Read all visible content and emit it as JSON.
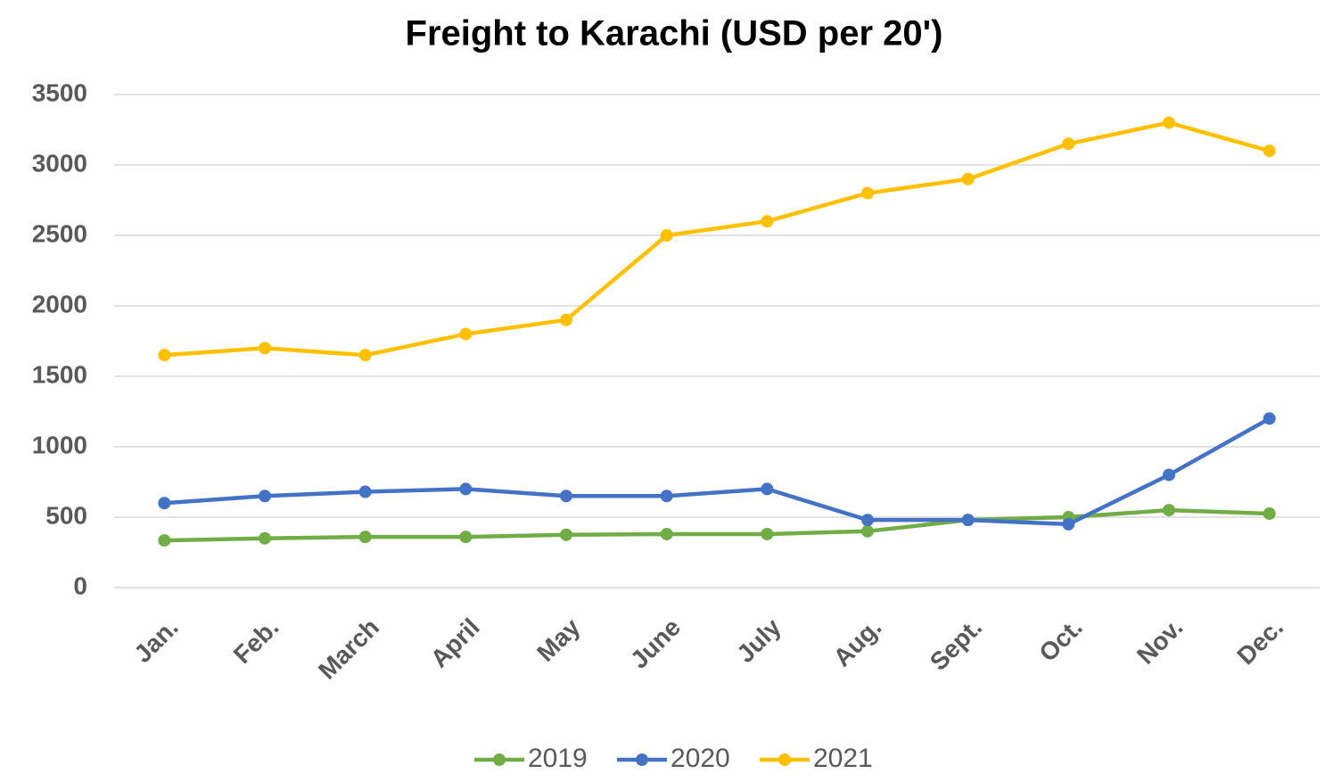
{
  "chart_data": {
    "type": "line",
    "title": "Freight to Karachi (USD per 20')",
    "categories": [
      "Jan.",
      "Feb.",
      "March",
      "April",
      "May",
      "June",
      "July",
      "Aug.",
      "Sept.",
      "Oct.",
      "Nov.",
      "Dec."
    ],
    "series": [
      {
        "name": "2019",
        "color": "#70ad47",
        "values": [
          335,
          350,
          360,
          360,
          375,
          380,
          380,
          400,
          480,
          500,
          550,
          525
        ]
      },
      {
        "name": "2020",
        "color": "#4472c4",
        "values": [
          600,
          650,
          680,
          700,
          650,
          650,
          700,
          480,
          480,
          450,
          800,
          1200
        ]
      },
      {
        "name": "2021",
        "color": "#ffc000",
        "values": [
          1650,
          1700,
          1650,
          1800,
          1900,
          2500,
          2600,
          2800,
          2900,
          3150,
          3300,
          3100
        ]
      }
    ],
    "ylim": [
      0,
      3500
    ],
    "yticks": [
      0,
      500,
      1000,
      1500,
      2000,
      2500,
      3000,
      3500
    ],
    "grid": true,
    "legend": "bottom"
  }
}
